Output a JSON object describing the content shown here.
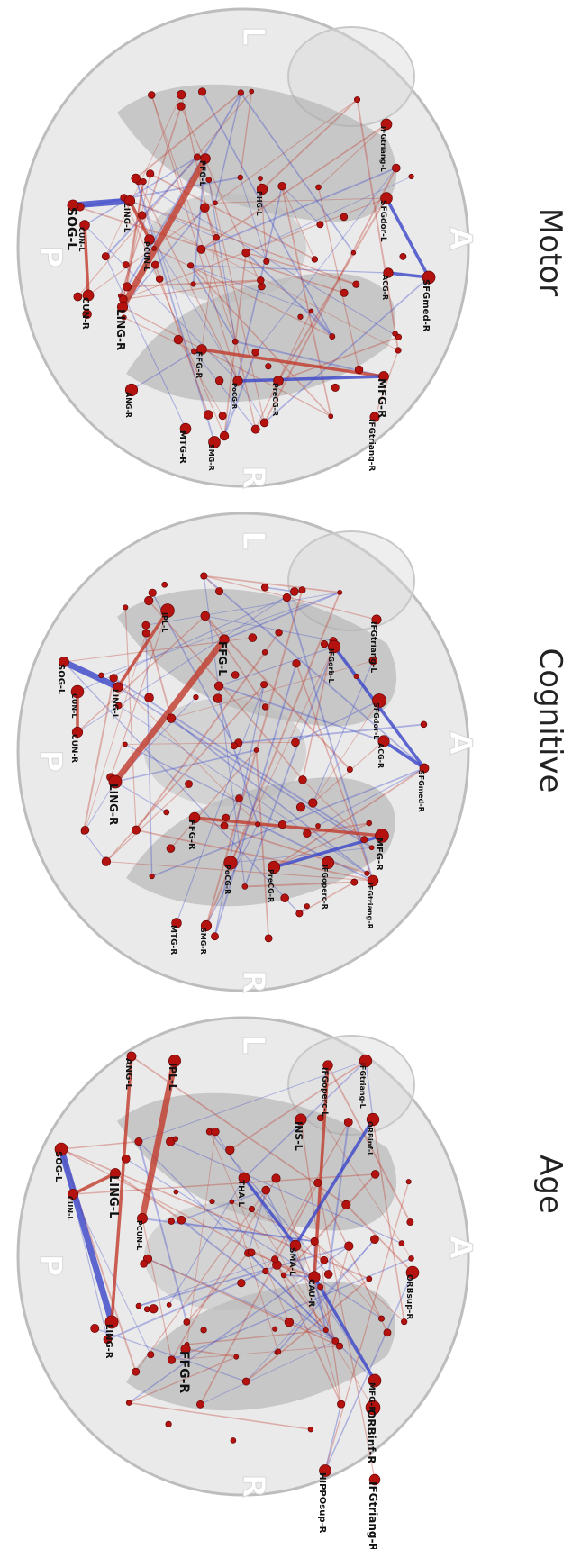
{
  "colors": {
    "positive_edge": "#c0392b",
    "negative_edge": "#3a45c8",
    "node": "#b3120f",
    "brain_shell": "#d9d9d9",
    "brain_core": "#a9a9a9"
  },
  "panels": [
    {
      "id": "motor",
      "title": "Motor",
      "orientation_labels": {
        "left": "L",
        "right": "R",
        "anterior": "A",
        "posterior": "P"
      },
      "labels": [
        "SOG-L",
        "CUN-L",
        "CUN-R",
        "LING-L",
        "LING-R",
        "PCUN-L",
        "FFG-L",
        "FFG-R",
        "PHG-L",
        "SFGdor-L",
        "IFGtriang-L",
        "ACG-R",
        "SFGmed-R",
        "MFG-R",
        "IFGtriang-R",
        "PreCG-R",
        "PoCG-R",
        "ANG-R",
        "MTG-R",
        "SMG-R"
      ]
    },
    {
      "id": "cognitive",
      "title": "Cognitive",
      "orientation_labels": {
        "left": "L",
        "right": "R",
        "anterior": "A",
        "posterior": "P"
      },
      "labels": [
        "SOG-L",
        "CUN-L",
        "CUN-R",
        "LING-L",
        "LING-R",
        "IPL-L",
        "FFG-L",
        "FFG-R",
        "IFGtriang-L",
        "IFGorb-L",
        "SFGdor-L",
        "ACG-R",
        "SFGmed-R",
        "MFG-R",
        "IFGtriang-R",
        "PoCG-R",
        "PreCG-R",
        "MTG-R",
        "SMG-R",
        "IFGoperc-R"
      ]
    },
    {
      "id": "age",
      "title": "Age",
      "orientation_labels": {
        "left": "L",
        "right": "R",
        "anterior": "A",
        "posterior": "P"
      },
      "labels": [
        "SOG-L",
        "CUN-L",
        "LING-L",
        "LING-R",
        "PCUN-L",
        "ANG-L",
        "IPL-L",
        "IFGoperc-L",
        "IFGtriang-L",
        "ORBinf-L",
        "INS-L",
        "THA-L",
        "SMA-L",
        "CAU-R",
        "ORBsup-R",
        "FFG-R",
        "MFG-R",
        "ORBinf-R",
        "IFGtriang-R",
        "HIPPOsup-R"
      ]
    }
  ]
}
